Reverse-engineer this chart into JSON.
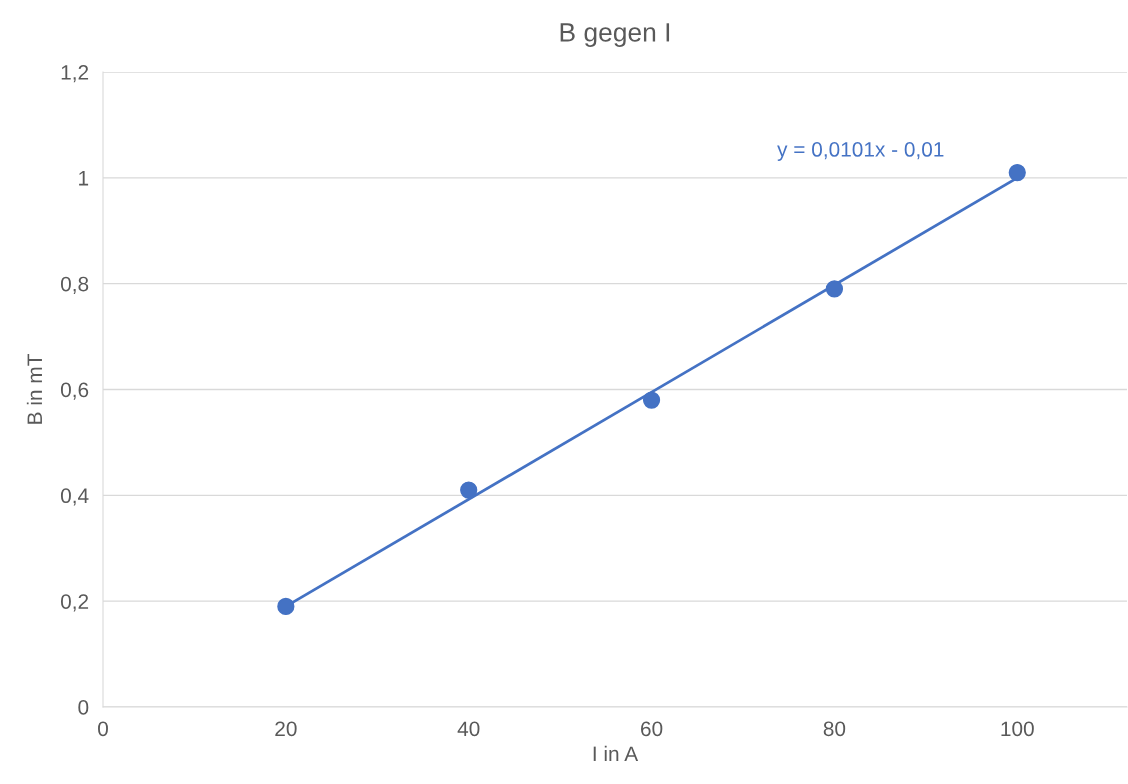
{
  "chart_data": {
    "type": "scatter",
    "title": "B gegen I",
    "xlabel": "I in A",
    "ylabel": "B in mT",
    "x": [
      20,
      40,
      60,
      80,
      100
    ],
    "series": [
      {
        "color": "#4472c4",
        "values": [
          0.19,
          0.41,
          0.58,
          0.79,
          1.01
        ],
        "marker": "circle"
      },
      {
        "type": "line",
        "color": "#4472c4",
        "x": [
          20,
          100
        ],
        "values": [
          0.19,
          1.0
        ],
        "line_style": "solid",
        "marker": "none"
      }
    ],
    "annotations": [
      "y = 0,0101x - 0,01"
    ],
    "xlim": [
      0,
      112
    ],
    "xticks": [
      0,
      20,
      40,
      60,
      80,
      100
    ],
    "ylim": [
      0,
      1.2
    ],
    "yticks": [
      0,
      {
        "value": 0.2,
        "label": "0,2"
      },
      {
        "value": 0.4,
        "label": "0,4"
      },
      {
        "value": 0.6,
        "label": "0,6"
      },
      {
        "value": 0.8,
        "label": "0,8"
      },
      1,
      {
        "value": 1.2,
        "label": "1,2"
      }
    ],
    "grid": "y"
  }
}
